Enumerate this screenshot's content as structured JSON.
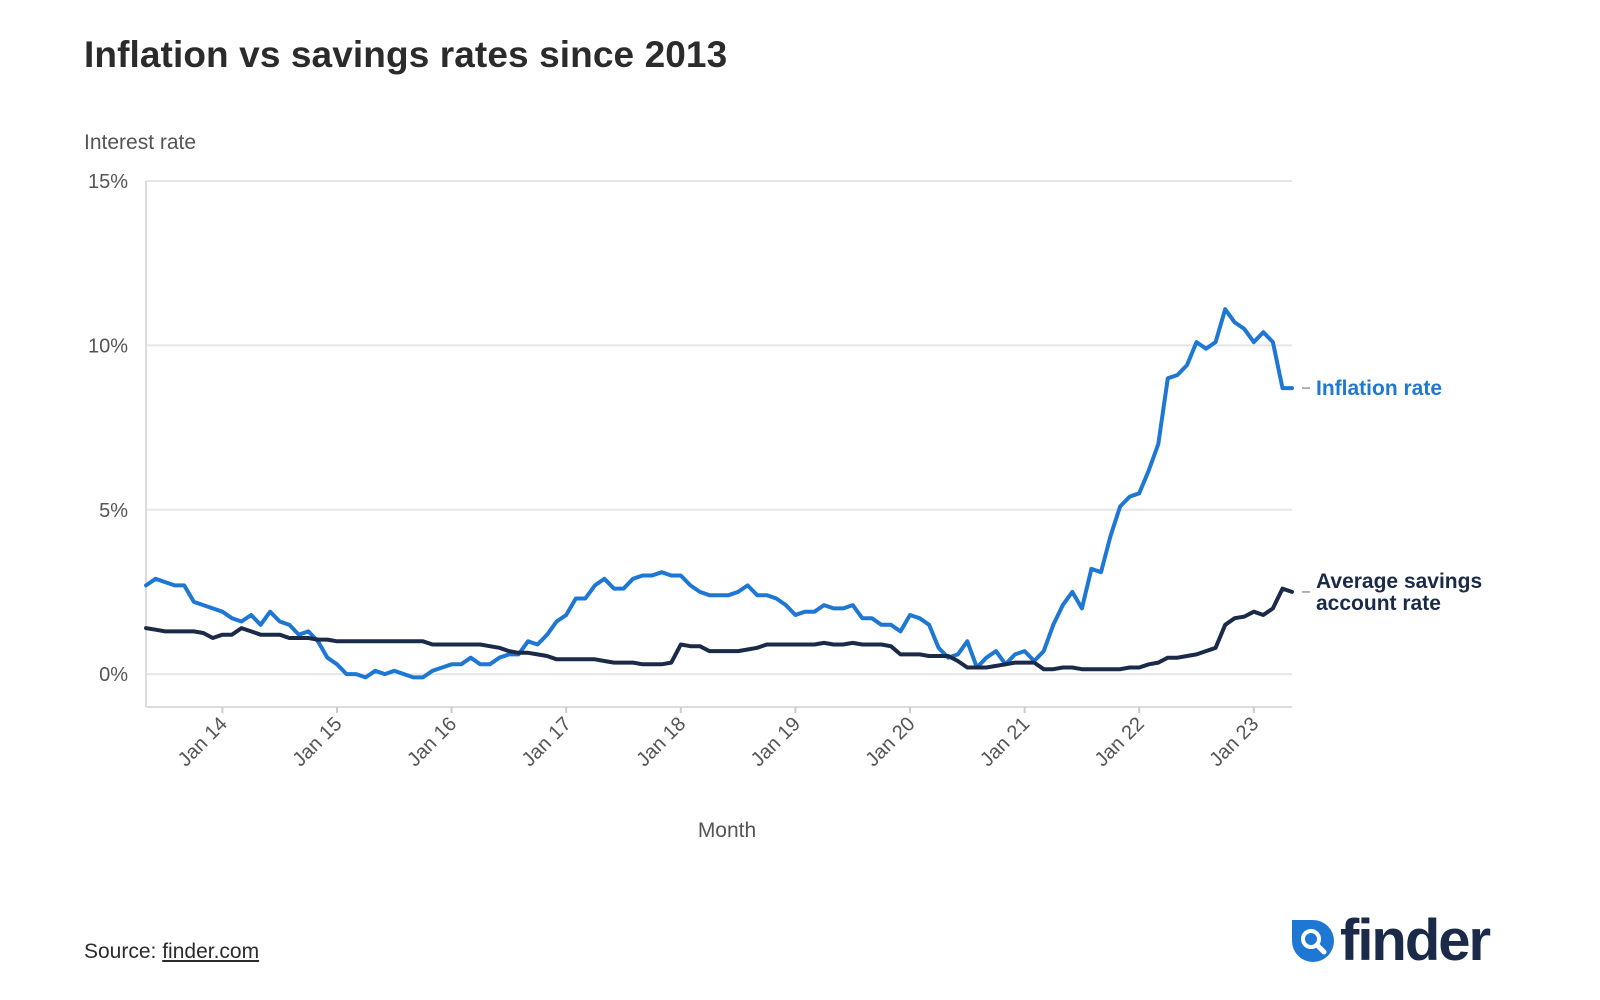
{
  "title": "Inflation vs savings rates since 2013",
  "source": {
    "prefix": "Source: ",
    "link_text": "finder.com"
  },
  "logo": {
    "text": "finder"
  },
  "colors": {
    "inflation": "#1f77d4",
    "savings": "#1b2a49",
    "grid": "#e6e6e6",
    "text": "#2b2b2b"
  },
  "chart_data": {
    "type": "line",
    "ylabel": "Interest rate",
    "xlabel": "Month",
    "y_ticks": [
      0,
      5,
      10,
      15
    ],
    "y_tick_labels": [
      "0%",
      "5%",
      "10%",
      "15%"
    ],
    "ylim": [
      -1,
      15
    ],
    "x_ticks": [
      "2014-01",
      "2015-01",
      "2016-01",
      "2017-01",
      "2018-01",
      "2019-01",
      "2020-01",
      "2021-01",
      "2022-01",
      "2023-01"
    ],
    "x_tick_labels": [
      "Jan 14",
      "Jan 15",
      "Jan 16",
      "Jan 17",
      "Jan 18",
      "Jan 19",
      "Jan 20",
      "Jan 21",
      "Jan 22",
      "Jan 23"
    ],
    "xlim": [
      "2013-05",
      "2023-05"
    ],
    "grid": true,
    "legend": "inline labels at right end of lines",
    "series": [
      {
        "name": "Inflation rate",
        "points": [
          [
            "2013-05",
            2.7
          ],
          [
            "2013-06",
            2.9
          ],
          [
            "2013-07",
            2.8
          ],
          [
            "2013-08",
            2.7
          ],
          [
            "2013-09",
            2.7
          ],
          [
            "2013-10",
            2.2
          ],
          [
            "2013-11",
            2.1
          ],
          [
            "2013-12",
            2.0
          ],
          [
            "2014-01",
            1.9
          ],
          [
            "2014-02",
            1.7
          ],
          [
            "2014-03",
            1.6
          ],
          [
            "2014-04",
            1.8
          ],
          [
            "2014-05",
            1.5
          ],
          [
            "2014-06",
            1.9
          ],
          [
            "2014-07",
            1.6
          ],
          [
            "2014-08",
            1.5
          ],
          [
            "2014-09",
            1.2
          ],
          [
            "2014-10",
            1.3
          ],
          [
            "2014-11",
            1.0
          ],
          [
            "2014-12",
            0.5
          ],
          [
            "2015-01",
            0.3
          ],
          [
            "2015-02",
            0.0
          ],
          [
            "2015-03",
            0.0
          ],
          [
            "2015-04",
            -0.1
          ],
          [
            "2015-05",
            0.1
          ],
          [
            "2015-06",
            0.0
          ],
          [
            "2015-07",
            0.1
          ],
          [
            "2015-08",
            0.0
          ],
          [
            "2015-09",
            -0.1
          ],
          [
            "2015-10",
            -0.1
          ],
          [
            "2015-11",
            0.1
          ],
          [
            "2015-12",
            0.2
          ],
          [
            "2016-01",
            0.3
          ],
          [
            "2016-02",
            0.3
          ],
          [
            "2016-03",
            0.5
          ],
          [
            "2016-04",
            0.3
          ],
          [
            "2016-05",
            0.3
          ],
          [
            "2016-06",
            0.5
          ],
          [
            "2016-07",
            0.6
          ],
          [
            "2016-08",
            0.6
          ],
          [
            "2016-09",
            1.0
          ],
          [
            "2016-10",
            0.9
          ],
          [
            "2016-11",
            1.2
          ],
          [
            "2016-12",
            1.6
          ],
          [
            "2017-01",
            1.8
          ],
          [
            "2017-02",
            2.3
          ],
          [
            "2017-03",
            2.3
          ],
          [
            "2017-04",
            2.7
          ],
          [
            "2017-05",
            2.9
          ],
          [
            "2017-06",
            2.6
          ],
          [
            "2017-07",
            2.6
          ],
          [
            "2017-08",
            2.9
          ],
          [
            "2017-09",
            3.0
          ],
          [
            "2017-10",
            3.0
          ],
          [
            "2017-11",
            3.1
          ],
          [
            "2017-12",
            3.0
          ],
          [
            "2018-01",
            3.0
          ],
          [
            "2018-02",
            2.7
          ],
          [
            "2018-03",
            2.5
          ],
          [
            "2018-04",
            2.4
          ],
          [
            "2018-05",
            2.4
          ],
          [
            "2018-06",
            2.4
          ],
          [
            "2018-07",
            2.5
          ],
          [
            "2018-08",
            2.7
          ],
          [
            "2018-09",
            2.4
          ],
          [
            "2018-10",
            2.4
          ],
          [
            "2018-11",
            2.3
          ],
          [
            "2018-12",
            2.1
          ],
          [
            "2019-01",
            1.8
          ],
          [
            "2019-02",
            1.9
          ],
          [
            "2019-03",
            1.9
          ],
          [
            "2019-04",
            2.1
          ],
          [
            "2019-05",
            2.0
          ],
          [
            "2019-06",
            2.0
          ],
          [
            "2019-07",
            2.1
          ],
          [
            "2019-08",
            1.7
          ],
          [
            "2019-09",
            1.7
          ],
          [
            "2019-10",
            1.5
          ],
          [
            "2019-11",
            1.5
          ],
          [
            "2019-12",
            1.3
          ],
          [
            "2020-01",
            1.8
          ],
          [
            "2020-02",
            1.7
          ],
          [
            "2020-03",
            1.5
          ],
          [
            "2020-04",
            0.8
          ],
          [
            "2020-05",
            0.5
          ],
          [
            "2020-06",
            0.6
          ],
          [
            "2020-07",
            1.0
          ],
          [
            "2020-08",
            0.2
          ],
          [
            "2020-09",
            0.5
          ],
          [
            "2020-10",
            0.7
          ],
          [
            "2020-11",
            0.3
          ],
          [
            "2020-12",
            0.6
          ],
          [
            "2021-01",
            0.7
          ],
          [
            "2021-02",
            0.4
          ],
          [
            "2021-03",
            0.7
          ],
          [
            "2021-04",
            1.5
          ],
          [
            "2021-05",
            2.1
          ],
          [
            "2021-06",
            2.5
          ],
          [
            "2021-07",
            2.0
          ],
          [
            "2021-08",
            3.2
          ],
          [
            "2021-09",
            3.1
          ],
          [
            "2021-10",
            4.2
          ],
          [
            "2021-11",
            5.1
          ],
          [
            "2021-12",
            5.4
          ],
          [
            "2022-01",
            5.5
          ],
          [
            "2022-02",
            6.2
          ],
          [
            "2022-03",
            7.0
          ],
          [
            "2022-04",
            9.0
          ],
          [
            "2022-05",
            9.1
          ],
          [
            "2022-06",
            9.4
          ],
          [
            "2022-07",
            10.1
          ],
          [
            "2022-08",
            9.9
          ],
          [
            "2022-09",
            10.1
          ],
          [
            "2022-10",
            11.1
          ],
          [
            "2022-11",
            10.7
          ],
          [
            "2022-12",
            10.5
          ],
          [
            "2023-01",
            10.1
          ],
          [
            "2023-02",
            10.4
          ],
          [
            "2023-03",
            10.1
          ],
          [
            "2023-04",
            8.7
          ],
          [
            "2023-05",
            8.7
          ]
        ]
      },
      {
        "name": "Average savings account rate",
        "points": [
          [
            "2013-05",
            1.4
          ],
          [
            "2013-06",
            1.35
          ],
          [
            "2013-07",
            1.3
          ],
          [
            "2013-08",
            1.3
          ],
          [
            "2013-09",
            1.3
          ],
          [
            "2013-10",
            1.3
          ],
          [
            "2013-11",
            1.25
          ],
          [
            "2013-12",
            1.1
          ],
          [
            "2014-01",
            1.2
          ],
          [
            "2014-02",
            1.2
          ],
          [
            "2014-03",
            1.4
          ],
          [
            "2014-04",
            1.3
          ],
          [
            "2014-05",
            1.2
          ],
          [
            "2014-06",
            1.2
          ],
          [
            "2014-07",
            1.2
          ],
          [
            "2014-08",
            1.1
          ],
          [
            "2014-09",
            1.1
          ],
          [
            "2014-10",
            1.1
          ],
          [
            "2014-11",
            1.05
          ],
          [
            "2014-12",
            1.05
          ],
          [
            "2015-01",
            1.0
          ],
          [
            "2015-02",
            1.0
          ],
          [
            "2015-03",
            1.0
          ],
          [
            "2015-04",
            1.0
          ],
          [
            "2015-05",
            1.0
          ],
          [
            "2015-06",
            1.0
          ],
          [
            "2015-07",
            1.0
          ],
          [
            "2015-08",
            1.0
          ],
          [
            "2015-09",
            1.0
          ],
          [
            "2015-10",
            1.0
          ],
          [
            "2015-11",
            0.9
          ],
          [
            "2015-12",
            0.9
          ],
          [
            "2016-01",
            0.9
          ],
          [
            "2016-02",
            0.9
          ],
          [
            "2016-03",
            0.9
          ],
          [
            "2016-04",
            0.9
          ],
          [
            "2016-05",
            0.85
          ],
          [
            "2016-06",
            0.8
          ],
          [
            "2016-07",
            0.7
          ],
          [
            "2016-08",
            0.65
          ],
          [
            "2016-09",
            0.65
          ],
          [
            "2016-10",
            0.6
          ],
          [
            "2016-11",
            0.55
          ],
          [
            "2016-12",
            0.45
          ],
          [
            "2017-01",
            0.45
          ],
          [
            "2017-02",
            0.45
          ],
          [
            "2017-03",
            0.45
          ],
          [
            "2017-04",
            0.45
          ],
          [
            "2017-05",
            0.4
          ],
          [
            "2017-06",
            0.35
          ],
          [
            "2017-07",
            0.35
          ],
          [
            "2017-08",
            0.35
          ],
          [
            "2017-09",
            0.3
          ],
          [
            "2017-10",
            0.3
          ],
          [
            "2017-11",
            0.3
          ],
          [
            "2017-12",
            0.35
          ],
          [
            "2018-01",
            0.9
          ],
          [
            "2018-02",
            0.85
          ],
          [
            "2018-03",
            0.85
          ],
          [
            "2018-04",
            0.7
          ],
          [
            "2018-05",
            0.7
          ],
          [
            "2018-06",
            0.7
          ],
          [
            "2018-07",
            0.7
          ],
          [
            "2018-08",
            0.75
          ],
          [
            "2018-09",
            0.8
          ],
          [
            "2018-10",
            0.9
          ],
          [
            "2018-11",
            0.9
          ],
          [
            "2018-12",
            0.9
          ],
          [
            "2019-01",
            0.9
          ],
          [
            "2019-02",
            0.9
          ],
          [
            "2019-03",
            0.9
          ],
          [
            "2019-04",
            0.95
          ],
          [
            "2019-05",
            0.9
          ],
          [
            "2019-06",
            0.9
          ],
          [
            "2019-07",
            0.95
          ],
          [
            "2019-08",
            0.9
          ],
          [
            "2019-09",
            0.9
          ],
          [
            "2019-10",
            0.9
          ],
          [
            "2019-11",
            0.85
          ],
          [
            "2019-12",
            0.6
          ],
          [
            "2020-01",
            0.6
          ],
          [
            "2020-02",
            0.6
          ],
          [
            "2020-03",
            0.55
          ],
          [
            "2020-04",
            0.55
          ],
          [
            "2020-05",
            0.55
          ],
          [
            "2020-06",
            0.4
          ],
          [
            "2020-07",
            0.2
          ],
          [
            "2020-08",
            0.2
          ],
          [
            "2020-09",
            0.2
          ],
          [
            "2020-10",
            0.25
          ],
          [
            "2020-11",
            0.3
          ],
          [
            "2020-12",
            0.35
          ],
          [
            "2021-01",
            0.35
          ],
          [
            "2021-02",
            0.35
          ],
          [
            "2021-03",
            0.15
          ],
          [
            "2021-04",
            0.15
          ],
          [
            "2021-05",
            0.2
          ],
          [
            "2021-06",
            0.2
          ],
          [
            "2021-07",
            0.15
          ],
          [
            "2021-08",
            0.15
          ],
          [
            "2021-09",
            0.15
          ],
          [
            "2021-10",
            0.15
          ],
          [
            "2021-11",
            0.15
          ],
          [
            "2021-12",
            0.2
          ],
          [
            "2022-01",
            0.2
          ],
          [
            "2022-02",
            0.3
          ],
          [
            "2022-03",
            0.35
          ],
          [
            "2022-04",
            0.5
          ],
          [
            "2022-05",
            0.5
          ],
          [
            "2022-06",
            0.55
          ],
          [
            "2022-07",
            0.6
          ],
          [
            "2022-08",
            0.7
          ],
          [
            "2022-09",
            0.8
          ],
          [
            "2022-10",
            1.5
          ],
          [
            "2022-11",
            1.7
          ],
          [
            "2022-12",
            1.75
          ],
          [
            "2023-01",
            1.9
          ],
          [
            "2023-02",
            1.8
          ],
          [
            "2023-03",
            2.0
          ],
          [
            "2023-04",
            2.6
          ],
          [
            "2023-05",
            2.5
          ]
        ]
      }
    ]
  }
}
